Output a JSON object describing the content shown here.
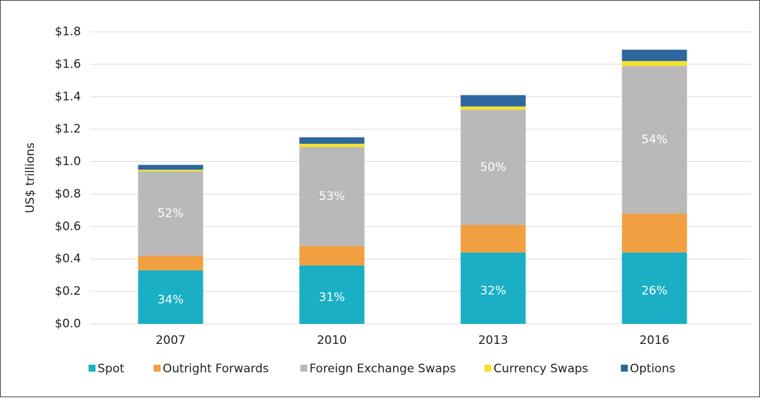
{
  "chart_data": {
    "type": "stacked_bar",
    "y_label": "US$ trillions",
    "categories": [
      "2007",
      "2010",
      "2013",
      "2016"
    ],
    "series": [
      {
        "name": "Spot",
        "color": "#1aafc4",
        "values": [
          0.33,
          0.36,
          0.44,
          0.44
        ],
        "share_labels": [
          "34%",
          "31%",
          "32%",
          "26%"
        ]
      },
      {
        "name": "Outright Forwards",
        "color": "#f0a041",
        "values": [
          0.09,
          0.12,
          0.17,
          0.24
        ]
      },
      {
        "name": "Foreign Exchange Swaps",
        "color": "#b9b9b9",
        "values": [
          0.52,
          0.61,
          0.71,
          0.91
        ],
        "share_labels": [
          "52%",
          "53%",
          "50%",
          "54%"
        ]
      },
      {
        "name": "Currency Swaps",
        "color": "#f6e12e",
        "values": [
          0.01,
          0.02,
          0.02,
          0.03
        ]
      },
      {
        "name": "Options",
        "color": "#2e679d",
        "values": [
          0.03,
          0.04,
          0.07,
          0.07
        ]
      }
    ],
    "ylim": [
      0,
      1.8
    ],
    "yticks": [
      {
        "value": 0,
        "label": "$0.0"
      },
      {
        "value": 0.2,
        "label": "$0.2"
      },
      {
        "value": 0.4,
        "label": "$0.4"
      },
      {
        "value": 0.6,
        "label": "$0.6"
      },
      {
        "value": 0.8,
        "label": "$0.8"
      },
      {
        "value": 1.0,
        "label": "$1.0"
      },
      {
        "value": 1.2,
        "label": "$1.2"
      },
      {
        "value": 1.4,
        "label": "$1.4"
      },
      {
        "value": 1.6,
        "label": "$1.6"
      },
      {
        "value": 1.8,
        "label": "$1.8"
      }
    ],
    "grid": true
  }
}
